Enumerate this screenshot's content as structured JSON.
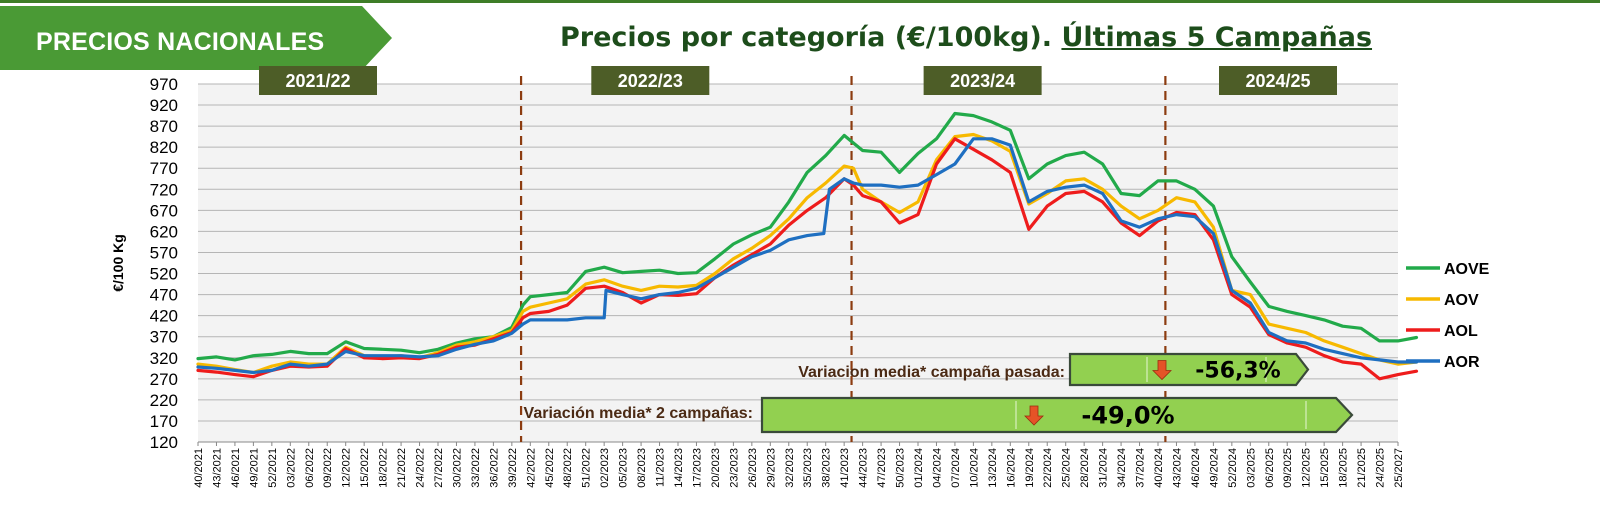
{
  "header": {
    "section_label": "PRECIOS NACIONALES",
    "title_main": "Precios por categoría (€/100kg).",
    "title_underlined": "Últimas 5 Campañas"
  },
  "chart_data": {
    "type": "line",
    "ylabel": "€/100 Kg",
    "ylim": [
      120,
      970
    ],
    "yticks": [
      970,
      920,
      870,
      820,
      770,
      720,
      670,
      620,
      570,
      520,
      470,
      420,
      370,
      320,
      270,
      220,
      170,
      120
    ],
    "grid": true,
    "legend_position": "right",
    "x_tick_labels": [
      "40/2021",
      "43/2021",
      "46/2021",
      "49/2021",
      "52/2021",
      "03/2022",
      "06/2022",
      "09/2022",
      "12/2022",
      "15/2022",
      "18/2022",
      "21/2022",
      "24/2022",
      "27/2022",
      "30/2022",
      "33/2022",
      "36/2022",
      "39/2022",
      "42/2022",
      "45/2022",
      "48/2022",
      "51/2022",
      "02/2023",
      "05/2023",
      "08/2023",
      "11/2023",
      "14/2023",
      "17/2023",
      "20/2023",
      "23/2023",
      "26/2023",
      "29/2023",
      "32/2023",
      "35/2023",
      "38/2023",
      "41/2023",
      "44/2023",
      "47/2023",
      "50/2023",
      "01/2024",
      "04/2024",
      "07/2024",
      "10/2024",
      "13/2024",
      "16/2024",
      "19/2024",
      "22/2024",
      "25/2024",
      "28/2024",
      "31/2024",
      "34/2024",
      "37/2024",
      "40/2024",
      "43/2024",
      "46/2024",
      "49/2024",
      "52/2024",
      "03/2025",
      "06/2025",
      "09/2025",
      "12/2025",
      "15/2025",
      "18/2025",
      "21/2025",
      "24/2025",
      "25/2027"
    ],
    "campaigns": [
      {
        "label": "2021/22",
        "center_tick": 6.5
      },
      {
        "label": "2022/23",
        "center_tick": 24.5
      },
      {
        "label": "2023/24",
        "center_tick": 42.5
      },
      {
        "label": "2024/25",
        "center_tick": 58.5
      }
    ],
    "campaign_dividers_tick": [
      17.5,
      35.4,
      52.4
    ],
    "series": [
      {
        "name": "AOVE",
        "color": "#22aa4a",
        "points": [
          [
            0,
            318
          ],
          [
            1,
            322
          ],
          [
            2,
            315
          ],
          [
            3,
            325
          ],
          [
            4,
            328
          ],
          [
            5,
            335
          ],
          [
            6,
            330
          ],
          [
            7,
            330
          ],
          [
            8,
            358
          ],
          [
            9,
            342
          ],
          [
            10,
            340
          ],
          [
            11,
            338
          ],
          [
            12,
            332
          ],
          [
            13,
            340
          ],
          [
            14,
            355
          ],
          [
            15,
            365
          ],
          [
            16,
            370
          ],
          [
            17,
            392
          ],
          [
            17.6,
            445
          ],
          [
            18,
            465
          ],
          [
            19,
            470
          ],
          [
            20,
            475
          ],
          [
            21,
            525
          ],
          [
            22,
            535
          ],
          [
            23,
            522
          ],
          [
            24,
            525
          ],
          [
            25,
            528
          ],
          [
            26,
            520
          ],
          [
            27,
            522
          ],
          [
            28,
            555
          ],
          [
            29,
            590
          ],
          [
            30,
            612
          ],
          [
            31,
            630
          ],
          [
            32,
            690
          ],
          [
            33,
            760
          ],
          [
            34,
            800
          ],
          [
            35,
            848
          ],
          [
            35.5,
            830
          ],
          [
            36,
            812
          ],
          [
            37,
            808
          ],
          [
            38,
            760
          ],
          [
            39,
            805
          ],
          [
            40,
            840
          ],
          [
            41,
            900
          ],
          [
            42,
            895
          ],
          [
            43,
            880
          ],
          [
            44,
            860
          ],
          [
            45,
            745
          ],
          [
            46,
            780
          ],
          [
            47,
            800
          ],
          [
            48,
            808
          ],
          [
            49,
            780
          ],
          [
            50,
            710
          ],
          [
            51,
            705
          ],
          [
            52,
            740
          ],
          [
            53,
            740
          ],
          [
            54,
            720
          ],
          [
            55,
            680
          ],
          [
            56,
            560
          ],
          [
            57,
            500
          ],
          [
            58,
            442
          ],
          [
            59,
            430
          ],
          [
            60,
            420
          ],
          [
            61,
            410
          ],
          [
            62,
            395
          ],
          [
            63,
            390
          ],
          [
            64,
            360
          ],
          [
            65,
            360
          ],
          [
            66,
            368
          ]
        ]
      },
      {
        "name": "AOV",
        "color": "#f7b900",
        "points": [
          [
            0,
            305
          ],
          [
            1,
            300
          ],
          [
            2,
            292
          ],
          [
            3,
            285
          ],
          [
            4,
            300
          ],
          [
            5,
            310
          ],
          [
            6,
            305
          ],
          [
            7,
            305
          ],
          [
            8,
            345
          ],
          [
            9,
            325
          ],
          [
            10,
            322
          ],
          [
            11,
            325
          ],
          [
            12,
            320
          ],
          [
            13,
            332
          ],
          [
            14,
            350
          ],
          [
            15,
            358
          ],
          [
            16,
            370
          ],
          [
            17,
            385
          ],
          [
            17.6,
            430
          ],
          [
            18,
            440
          ],
          [
            19,
            450
          ],
          [
            20,
            460
          ],
          [
            21,
            495
          ],
          [
            22,
            505
          ],
          [
            23,
            490
          ],
          [
            24,
            480
          ],
          [
            25,
            490
          ],
          [
            26,
            488
          ],
          [
            27,
            492
          ],
          [
            28,
            520
          ],
          [
            29,
            555
          ],
          [
            30,
            580
          ],
          [
            31,
            610
          ],
          [
            32,
            650
          ],
          [
            33,
            700
          ],
          [
            34,
            735
          ],
          [
            35,
            775
          ],
          [
            35.5,
            770
          ],
          [
            36,
            720
          ],
          [
            37,
            690
          ],
          [
            38,
            665
          ],
          [
            39,
            690
          ],
          [
            40,
            790
          ],
          [
            41,
            845
          ],
          [
            42,
            850
          ],
          [
            43,
            835
          ],
          [
            44,
            810
          ],
          [
            45,
            685
          ],
          [
            46,
            710
          ],
          [
            47,
            740
          ],
          [
            48,
            745
          ],
          [
            49,
            720
          ],
          [
            50,
            680
          ],
          [
            51,
            650
          ],
          [
            52,
            670
          ],
          [
            53,
            700
          ],
          [
            54,
            690
          ],
          [
            55,
            630
          ],
          [
            56,
            480
          ],
          [
            57,
            470
          ],
          [
            58,
            400
          ],
          [
            59,
            390
          ],
          [
            60,
            380
          ],
          [
            61,
            360
          ],
          [
            62,
            345
          ],
          [
            63,
            330
          ],
          [
            64,
            315
          ],
          [
            65,
            305
          ],
          [
            66,
            310
          ]
        ]
      },
      {
        "name": "AOL",
        "color": "#ee1c1c",
        "points": [
          [
            0,
            290
          ],
          [
            1,
            286
          ],
          [
            2,
            280
          ],
          [
            3,
            275
          ],
          [
            4,
            290
          ],
          [
            5,
            300
          ],
          [
            6,
            298
          ],
          [
            7,
            300
          ],
          [
            8,
            342
          ],
          [
            9,
            320
          ],
          [
            10,
            318
          ],
          [
            11,
            320
          ],
          [
            12,
            318
          ],
          [
            13,
            328
          ],
          [
            14,
            345
          ],
          [
            15,
            350
          ],
          [
            16,
            365
          ],
          [
            17,
            380
          ],
          [
            17.6,
            415
          ],
          [
            18,
            425
          ],
          [
            19,
            430
          ],
          [
            20,
            445
          ],
          [
            21,
            485
          ],
          [
            22,
            490
          ],
          [
            23,
            475
          ],
          [
            24,
            450
          ],
          [
            25,
            470
          ],
          [
            26,
            468
          ],
          [
            27,
            472
          ],
          [
            28,
            510
          ],
          [
            29,
            540
          ],
          [
            30,
            565
          ],
          [
            31,
            590
          ],
          [
            32,
            635
          ],
          [
            33,
            670
          ],
          [
            34,
            700
          ],
          [
            35,
            745
          ],
          [
            35.5,
            730
          ],
          [
            36,
            705
          ],
          [
            37,
            690
          ],
          [
            38,
            640
          ],
          [
            39,
            660
          ],
          [
            40,
            780
          ],
          [
            41,
            840
          ],
          [
            42,
            815
          ],
          [
            43,
            790
          ],
          [
            44,
            760
          ],
          [
            45,
            625
          ],
          [
            46,
            680
          ],
          [
            47,
            710
          ],
          [
            48,
            715
          ],
          [
            49,
            690
          ],
          [
            50,
            640
          ],
          [
            51,
            610
          ],
          [
            52,
            645
          ],
          [
            53,
            665
          ],
          [
            54,
            660
          ],
          [
            55,
            600
          ],
          [
            56,
            470
          ],
          [
            57,
            440
          ],
          [
            58,
            375
          ],
          [
            59,
            355
          ],
          [
            60,
            345
          ],
          [
            61,
            325
          ],
          [
            62,
            310
          ],
          [
            63,
            305
          ],
          [
            64,
            270
          ],
          [
            65,
            280
          ],
          [
            66,
            288
          ]
        ]
      },
      {
        "name": "AOR",
        "color": "#1e6fc1",
        "points": [
          [
            0,
            298
          ],
          [
            1,
            295
          ],
          [
            2,
            290
          ],
          [
            3,
            285
          ],
          [
            4,
            290
          ],
          [
            5,
            305
          ],
          [
            6,
            300
          ],
          [
            7,
            305
          ],
          [
            8,
            335
          ],
          [
            9,
            325
          ],
          [
            10,
            325
          ],
          [
            11,
            325
          ],
          [
            12,
            322
          ],
          [
            13,
            325
          ],
          [
            14,
            340
          ],
          [
            15,
            352
          ],
          [
            16,
            360
          ],
          [
            17,
            378
          ],
          [
            17.6,
            400
          ],
          [
            18,
            410
          ],
          [
            19,
            410
          ],
          [
            20,
            410
          ],
          [
            21,
            415
          ],
          [
            22,
            415
          ],
          [
            22.1,
            480
          ],
          [
            23,
            470
          ],
          [
            24,
            460
          ],
          [
            25,
            470
          ],
          [
            26,
            475
          ],
          [
            27,
            485
          ],
          [
            28,
            510
          ],
          [
            29,
            535
          ],
          [
            30,
            560
          ],
          [
            31,
            575
          ],
          [
            32,
            600
          ],
          [
            33,
            610
          ],
          [
            33.9,
            615
          ],
          [
            34.2,
            720
          ],
          [
            35,
            745
          ],
          [
            35.5,
            735
          ],
          [
            36,
            730
          ],
          [
            37,
            730
          ],
          [
            38,
            725
          ],
          [
            39,
            730
          ],
          [
            40,
            755
          ],
          [
            41,
            780
          ],
          [
            42,
            840
          ],
          [
            43,
            840
          ],
          [
            44,
            825
          ],
          [
            45,
            690
          ],
          [
            46,
            715
          ],
          [
            47,
            725
          ],
          [
            48,
            730
          ],
          [
            49,
            710
          ],
          [
            50,
            645
          ],
          [
            51,
            630
          ],
          [
            52,
            650
          ],
          [
            53,
            660
          ],
          [
            54,
            655
          ],
          [
            55,
            615
          ],
          [
            56,
            480
          ],
          [
            57,
            450
          ],
          [
            58,
            380
          ],
          [
            59,
            360
          ],
          [
            60,
            355
          ],
          [
            61,
            340
          ],
          [
            62,
            330
          ],
          [
            63,
            320
          ],
          [
            64,
            315
          ],
          [
            65,
            310
          ],
          [
            66,
            310
          ]
        ]
      }
    ],
    "variation_boxes": [
      {
        "label": "Variacion media* campaña pasada:",
        "value": "-56,3%"
      },
      {
        "label": "Variación media* 2 campañas:",
        "value": "-49,0%"
      }
    ]
  },
  "colors": {
    "banner_green": "#4a9a35",
    "title_green": "#1d4d1b",
    "campaign_label_bg": "#4d5d27",
    "divider_brown": "#8c3c10",
    "box_green": "#92d050",
    "down_arrow": "#e55327"
  },
  "icons": {
    "down_arrow": "arrow-down-icon"
  }
}
